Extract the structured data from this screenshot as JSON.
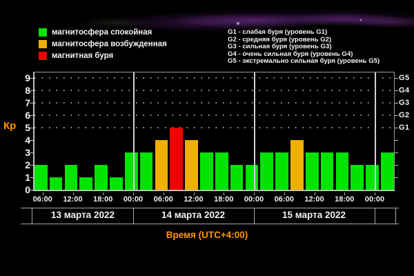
{
  "colors": {
    "background": "#000000",
    "calm_green": "#00e400",
    "excited_orange": "#f0b000",
    "storm_red": "#f00000",
    "accent_orange": "#ff9500",
    "axis_gray": "#c0c0c0",
    "text_white": "#f2f2f2",
    "nebula_purple": "#6a2d8f"
  },
  "legend": {
    "items": [
      {
        "label": "магнитосфера спокойная",
        "color": "calm_green"
      },
      {
        "label": "магнитосфера возбужденная",
        "color": "excited_orange"
      },
      {
        "label": "магнитная буря",
        "color": "storm_red"
      }
    ]
  },
  "storm_scale_legend": {
    "items": [
      "G1 - слабая буря (уровень G1)",
      "G2 - средняя буря (уровень G2)",
      "G3 - сильная буря (уровень G3)",
      "G4 - очень сильная буря (уровень G4)",
      "G5 - экстремально сильная буря (уровень G5)"
    ]
  },
  "chart_data": {
    "type": "bar",
    "ylabel": "Кр",
    "xlabel": "Время (UTC+4:00)",
    "ylim": [
      0,
      9
    ],
    "y_ticks": [
      0,
      1,
      2,
      3,
      4,
      5,
      6,
      7,
      8,
      9
    ],
    "grid": "dotted horizontal lines at Kp 5 through 9, legend top, day separator verticals",
    "right_axis": [
      {
        "label": "G1",
        "kp": 5
      },
      {
        "label": "G2",
        "kp": 6
      },
      {
        "label": "G3",
        "kp": 7
      },
      {
        "label": "G4",
        "kp": 8
      },
      {
        "label": "G5",
        "kp": 9
      }
    ],
    "time_tick_labels": [
      "06:00",
      "12:00",
      "18:00",
      "00:00",
      "06:00",
      "12:00",
      "18:00",
      "00:00",
      "06:00",
      "12:00",
      "18:00",
      "00:00"
    ],
    "days": [
      {
        "date": "13 марта 2022",
        "kp": [
          2,
          1,
          2,
          1,
          2,
          1,
          3
        ],
        "state": [
          "calm",
          "calm",
          "calm",
          "calm",
          "calm",
          "calm",
          "calm"
        ]
      },
      {
        "date": "14 марта 2022",
        "kp": [
          3,
          4,
          5,
          4,
          3,
          3,
          2,
          2
        ],
        "state": [
          "calm",
          "excited",
          "storm",
          "excited",
          "calm",
          "calm",
          "calm",
          "calm"
        ]
      },
      {
        "date": "15 марта 2022",
        "kp": [
          3,
          3,
          4,
          3,
          3,
          3,
          2,
          2
        ],
        "state": [
          "calm",
          "calm",
          "excited",
          "calm",
          "calm",
          "calm",
          "calm",
          "calm"
        ]
      },
      {
        "date": "",
        "kp": [
          3
        ],
        "state": [
          "calm"
        ]
      }
    ]
  }
}
